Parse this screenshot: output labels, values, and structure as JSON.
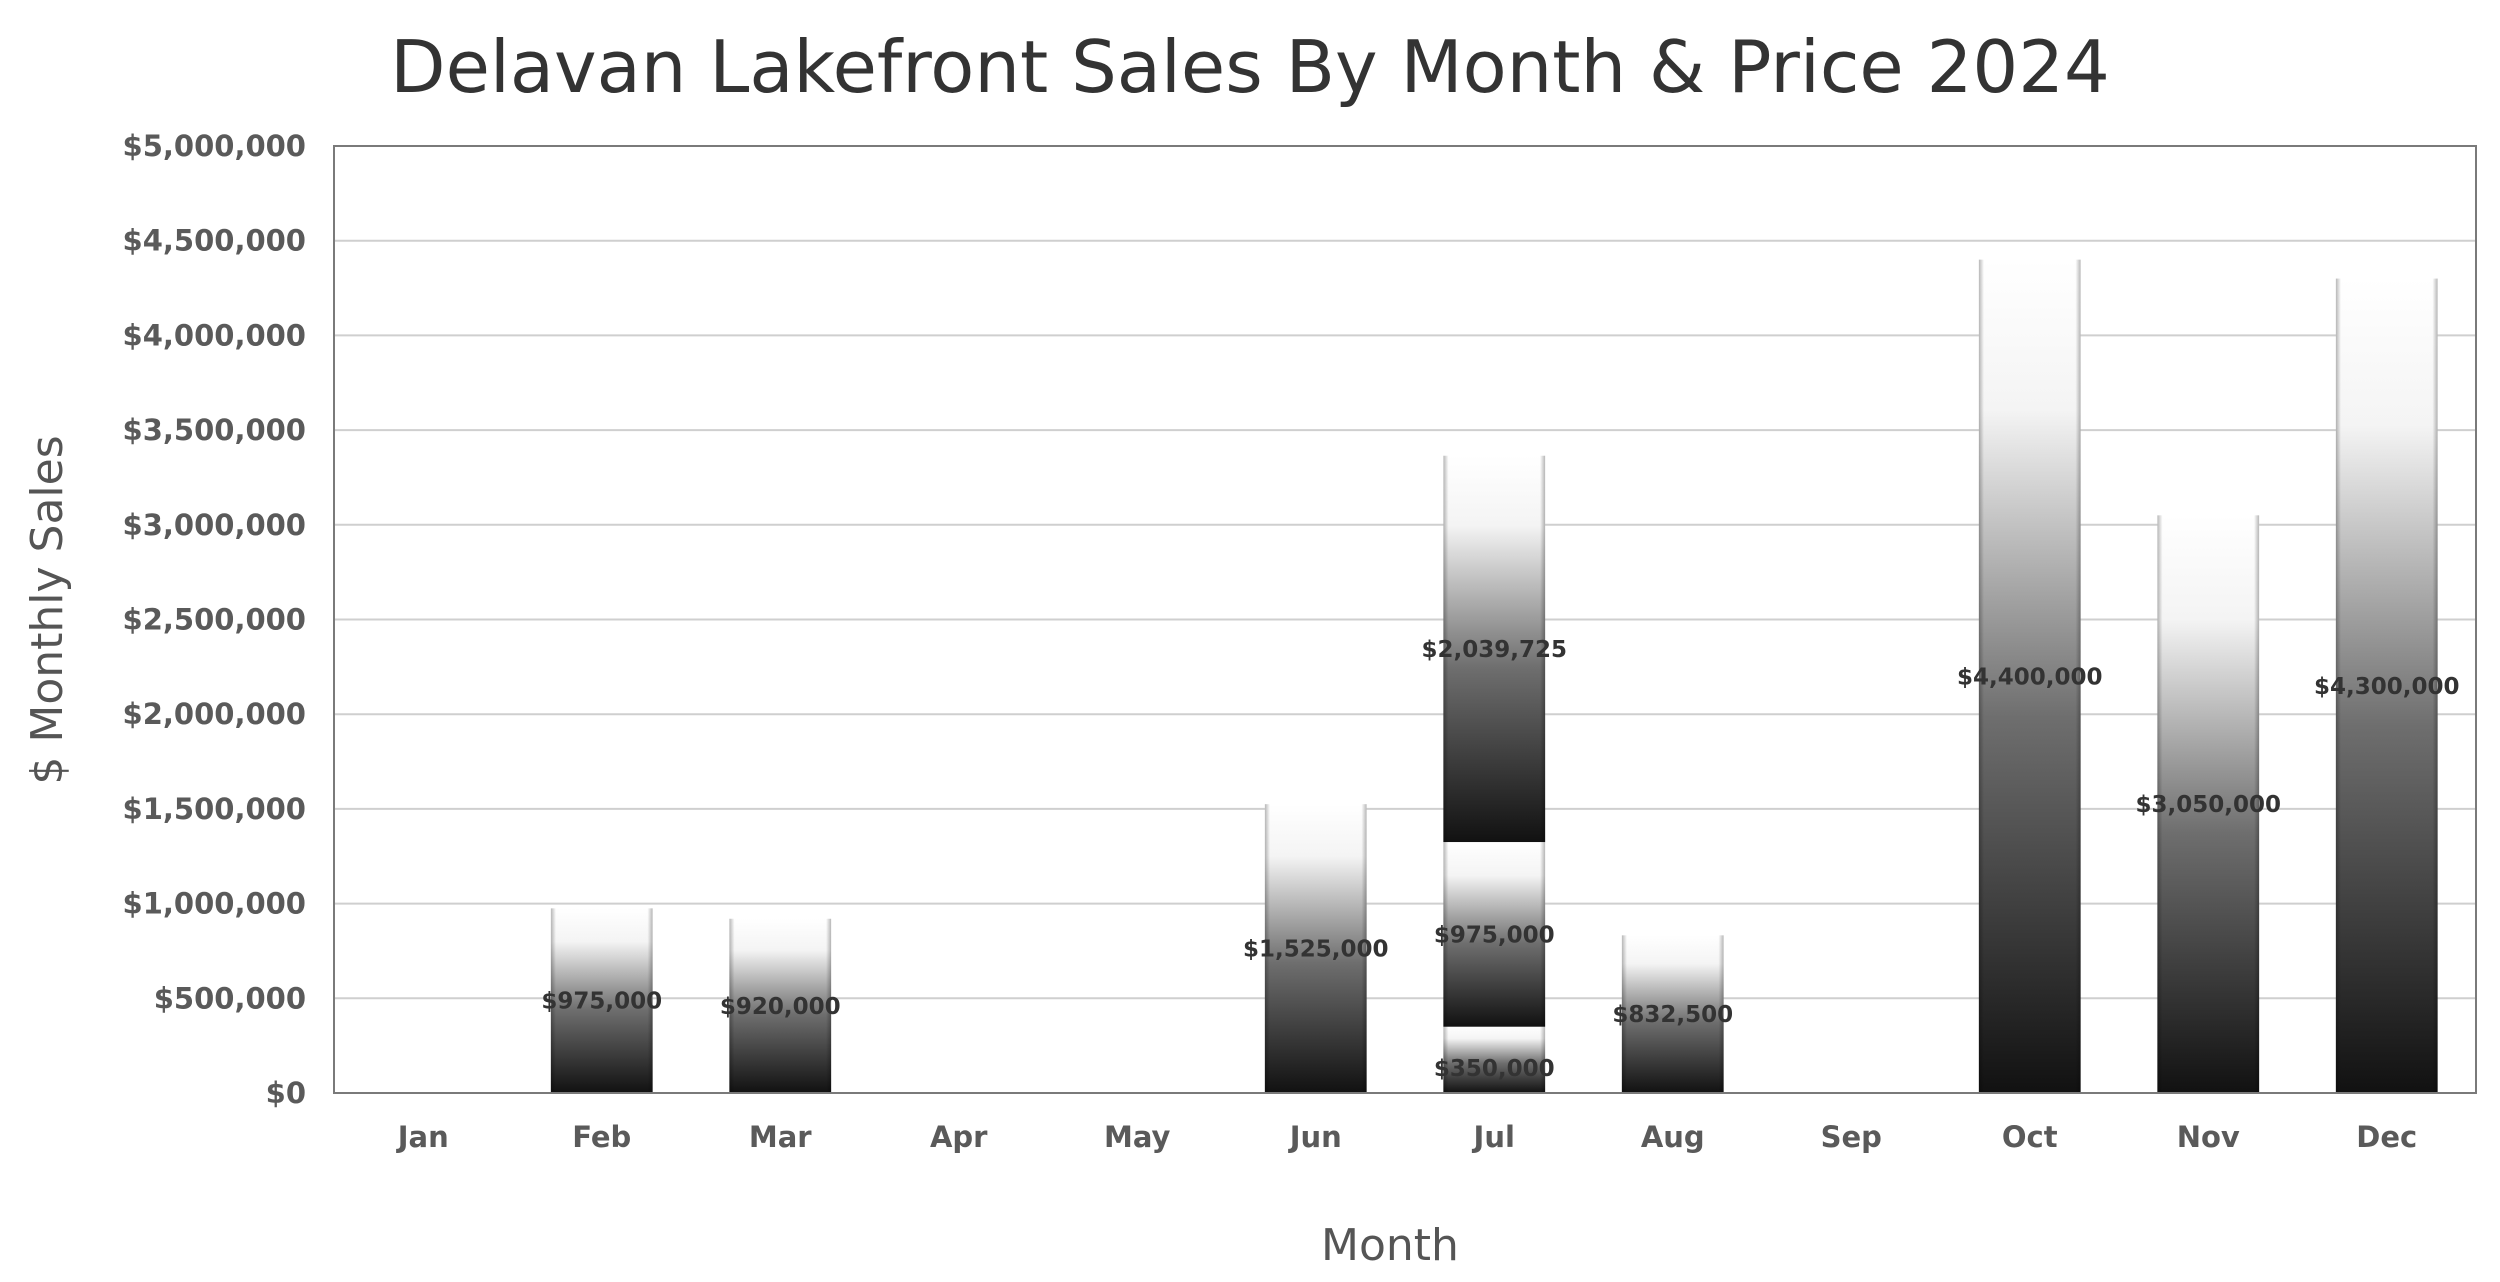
{
  "chart_data": {
    "type": "bar",
    "stacked": true,
    "title": "Delavan Lakefront Sales By Month & Price 2024",
    "xlabel": "Month",
    "ylabel": "$ Monthly Sales",
    "ylim": [
      0,
      5000000
    ],
    "ytick_step": 500000,
    "yticks": [
      "$0",
      "$500,000",
      "$1,000,000",
      "$1,500,000",
      "$2,000,000",
      "$2,500,000",
      "$3,000,000",
      "$3,500,000",
      "$4,000,000",
      "$4,500,000",
      "$5,000,000"
    ],
    "grid": true,
    "legend": "none",
    "categories": [
      "Jan",
      "Feb",
      "Mar",
      "Apr",
      "May",
      "Jun",
      "Jul",
      "Aug",
      "Sep",
      "Oct",
      "Nov",
      "Dec"
    ],
    "series": [
      {
        "values": [
          null,
          975000,
          920000,
          null,
          null,
          1525000,
          350000,
          832500,
          null,
          4400000,
          3050000,
          4300000
        ],
        "labels": [
          "",
          "$975,000",
          "$920,000",
          "",
          "",
          "$1,525,000",
          "$350,000",
          "$832,500",
          "",
          "$4,400,000",
          "$3,050,000",
          "$4,300,000"
        ]
      },
      {
        "values": [
          null,
          null,
          null,
          null,
          null,
          null,
          975000,
          null,
          null,
          null,
          null,
          null
        ],
        "labels": [
          "",
          "",
          "",
          "",
          "",
          "",
          "$975,000",
          "",
          "",
          "",
          "",
          ""
        ]
      },
      {
        "values": [
          null,
          null,
          null,
          null,
          null,
          null,
          2039725,
          null,
          null,
          null,
          null,
          null
        ],
        "labels": [
          "",
          "",
          "",
          "",
          "",
          "",
          "$2,039,725",
          "",
          "",
          "",
          "",
          ""
        ]
      }
    ],
    "colors": {
      "bar_dark": "#111111",
      "bar_mid": "#6e6e6e",
      "bar_light": "#ffffff",
      "grid": "#cfcfcf",
      "border": "#7a7a7a",
      "text": "#333333",
      "tick_text": "#5a5a5a"
    }
  }
}
